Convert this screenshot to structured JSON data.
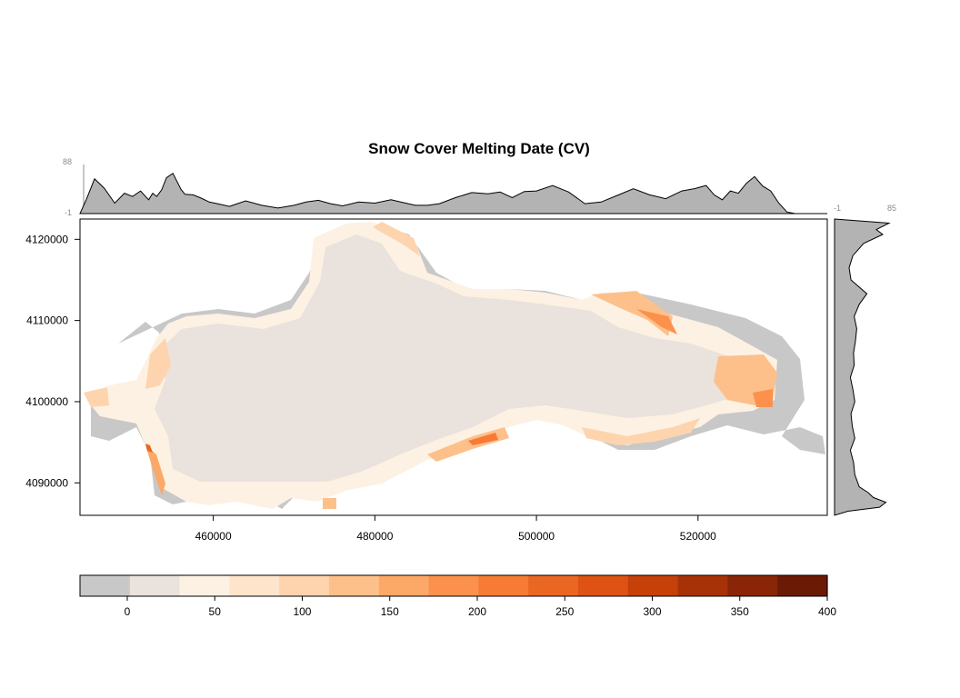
{
  "chart_data": {
    "type": "heatmap",
    "title": "Snow Cover Melting Date (CV)",
    "xlabel": "",
    "ylabel": "",
    "x_ticks": [
      "460000",
      "480000",
      "500000",
      "520000"
    ],
    "x_tick_values": [
      460000,
      480000,
      500000,
      520000
    ],
    "y_ticks": [
      "4090000",
      "4100000",
      "4110000",
      "4120000"
    ],
    "y_tick_values": [
      4090000,
      4100000,
      4110000,
      4120000
    ],
    "xlim": [
      443500,
      536000
    ],
    "ylim": [
      4086000,
      4122500
    ],
    "colorbar": {
      "ticks": [
        "0",
        "50",
        "100",
        "150",
        "200",
        "250",
        "300",
        "350",
        "400"
      ],
      "tick_values": [
        0,
        50,
        100,
        150,
        200,
        250,
        300,
        350,
        400
      ],
      "range": [
        -27,
        400
      ],
      "colors": [
        "#c8c8c8",
        "#eae2dc",
        "#fdf1e3",
        "#fde4cb",
        "#fdd4ad",
        "#fdc08b",
        "#fca866",
        "#fb914d",
        "#f77b34",
        "#ea6623",
        "#de5313",
        "#c6400a",
        "#a83208",
        "#8a2607",
        "#6b1a05"
      ]
    },
    "top_marginal": {
      "min_label": "-1",
      "max_label": "88",
      "range": [
        -1,
        88
      ],
      "x": [
        443500,
        444300,
        445300,
        446500,
        447800,
        449000,
        450000,
        451000,
        452000,
        452500,
        453000,
        453600,
        454200,
        455000,
        456000,
        456500,
        457500,
        458500,
        459500,
        460500,
        462000,
        464000,
        466000,
        468000,
        470000,
        471500,
        473000,
        474500,
        476000,
        478000,
        480000,
        482000,
        483500,
        485000,
        486500,
        488000,
        490000,
        492000,
        494000,
        495500,
        497000,
        498500,
        500000,
        502000,
        504000,
        506000,
        508000,
        510000,
        512000,
        514000,
        516000,
        518000,
        519500,
        521000,
        522000,
        523000,
        524000,
        525000,
        526000,
        527000,
        528000,
        529000,
        530000,
        531000,
        532000
      ],
      "values": [
        -1,
        25,
        62,
        45,
        18,
        36,
        30,
        40,
        24,
        36,
        30,
        42,
        64,
        72,
        43,
        34,
        33,
        27,
        20,
        17,
        12,
        22,
        14,
        9,
        14,
        20,
        23,
        17,
        13,
        20,
        18,
        24,
        19,
        14,
        14,
        17,
        28,
        37,
        35,
        38,
        28,
        39,
        40,
        50,
        38,
        17,
        20,
        32,
        44,
        33,
        26,
        40,
        44,
        50,
        33,
        24,
        40,
        36,
        54,
        66,
        49,
        40,
        18,
        2,
        -1
      ]
    },
    "right_marginal": {
      "min_label": "-1",
      "max_label": "85",
      "range": [
        -1,
        85
      ],
      "y": [
        4122500,
        4122000,
        4121200,
        4120600,
        4119500,
        4118000,
        4116500,
        4115000,
        4113300,
        4112000,
        4110500,
        4109000,
        4107500,
        4106000,
        4104500,
        4103000,
        4101500,
        4100000,
        4098500,
        4097000,
        4095500,
        4094000,
        4092500,
        4091000,
        4089500,
        4088800,
        4088200,
        4087600,
        4087000,
        4086500,
        4086000
      ],
      "values": [
        -1,
        85,
        65,
        75,
        45,
        28,
        22,
        25,
        50,
        38,
        30,
        34,
        32,
        29,
        30,
        24,
        28,
        31,
        25,
        27,
        31,
        24,
        29,
        31,
        38,
        52,
        60,
        80,
        70,
        20,
        -1
      ]
    }
  }
}
